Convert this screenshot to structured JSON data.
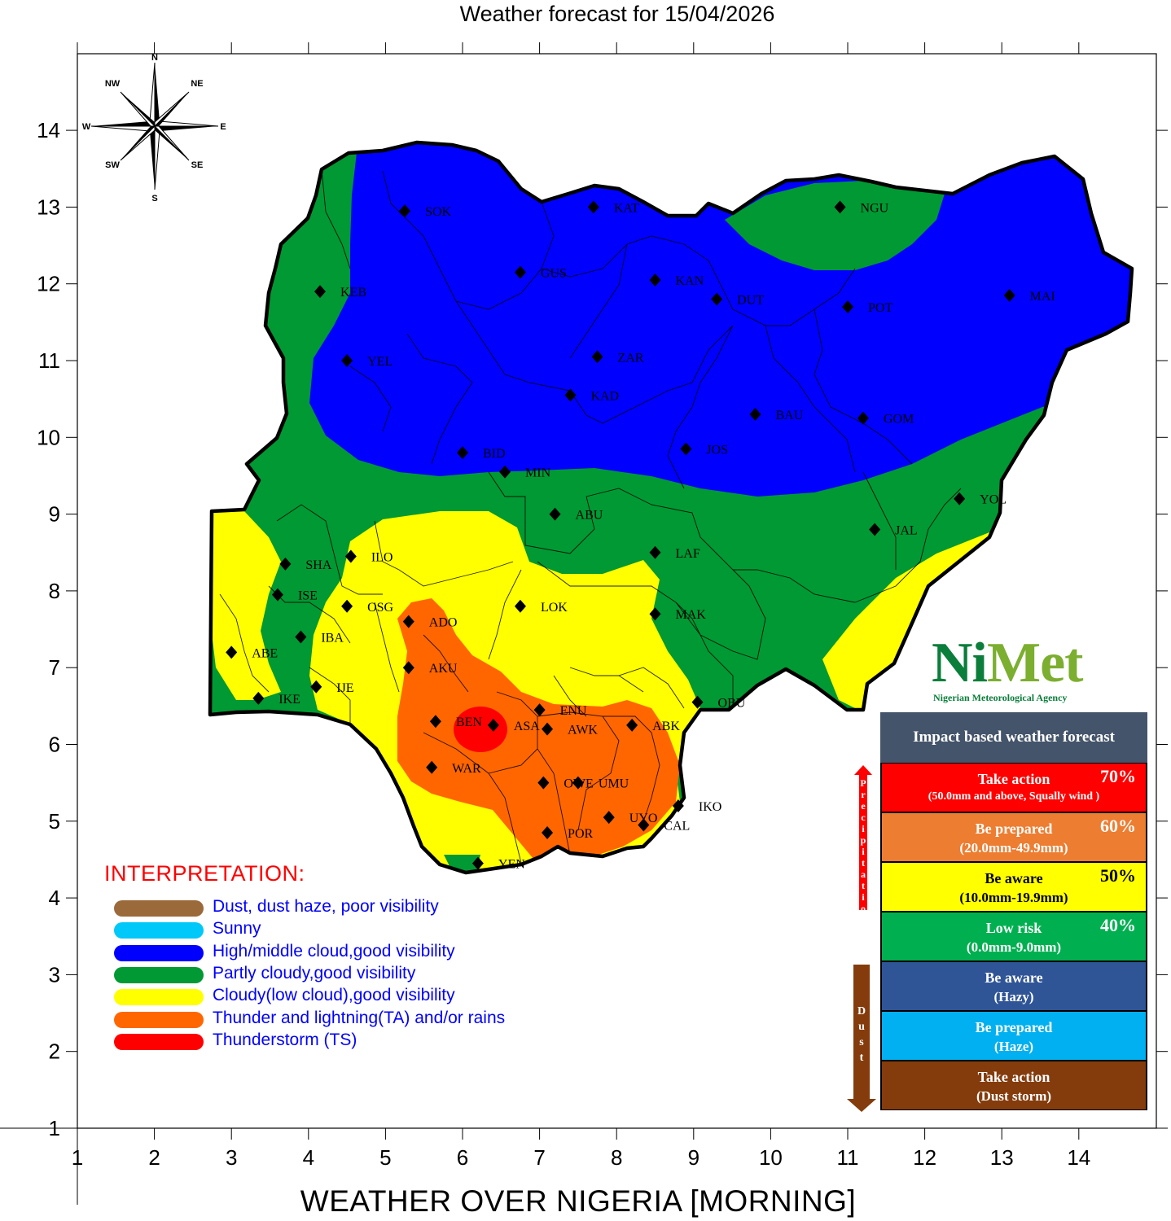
{
  "title": "Weather forecast for 15/04/2026",
  "bottom_title": "WEATHER OVER NIGERIA [MORNING]",
  "axes": {
    "x_ticks": [
      "1",
      "2",
      "3",
      "4",
      "5",
      "6",
      "7",
      "8",
      "9",
      "10",
      "11",
      "12",
      "13",
      "14"
    ],
    "y_ticks": [
      "1",
      "2",
      "3",
      "4",
      "5",
      "6",
      "7",
      "8",
      "9",
      "10",
      "11",
      "12",
      "13",
      "14"
    ],
    "xlim": [
      1,
      15
    ],
    "ylim": [
      1,
      15
    ]
  },
  "compass": {
    "n": "N",
    "s": "S",
    "e": "E",
    "w": "W",
    "ne": "NE",
    "nw": "NW",
    "se": "SE",
    "sw": "SW"
  },
  "cities": [
    {
      "code": "SOK",
      "lon": 5.25,
      "lat": 12.95
    },
    {
      "code": "KAT",
      "lon": 7.7,
      "lat": 13.0
    },
    {
      "code": "NGU",
      "lon": 10.9,
      "lat": 13.0
    },
    {
      "code": "GUS",
      "lon": 6.75,
      "lat": 12.15
    },
    {
      "code": "KEB",
      "lon": 4.15,
      "lat": 11.9
    },
    {
      "code": "KAN",
      "lon": 8.5,
      "lat": 12.05
    },
    {
      "code": "DUT",
      "lon": 9.3,
      "lat": 11.8
    },
    {
      "code": "POT",
      "lon": 11.0,
      "lat": 11.7
    },
    {
      "code": "MAI",
      "lon": 13.1,
      "lat": 11.85
    },
    {
      "code": "YEL",
      "lon": 4.5,
      "lat": 11.0
    },
    {
      "code": "ZAR",
      "lon": 7.75,
      "lat": 11.05
    },
    {
      "code": "KAD",
      "lon": 7.4,
      "lat": 10.55
    },
    {
      "code": "BAU",
      "lon": 9.8,
      "lat": 10.3
    },
    {
      "code": "GOM",
      "lon": 11.2,
      "lat": 10.25
    },
    {
      "code": "BID",
      "lon": 6.0,
      "lat": 9.8
    },
    {
      "code": "JOS",
      "lon": 8.9,
      "lat": 9.85
    },
    {
      "code": "MIN",
      "lon": 6.55,
      "lat": 9.55
    },
    {
      "code": "YOL",
      "lon": 12.45,
      "lat": 9.2
    },
    {
      "code": "ABU",
      "lon": 7.2,
      "lat": 9.0
    },
    {
      "code": "JAL",
      "lon": 11.35,
      "lat": 8.8
    },
    {
      "code": "ILO",
      "lon": 4.55,
      "lat": 8.45
    },
    {
      "code": "LAF",
      "lon": 8.5,
      "lat": 8.5
    },
    {
      "code": "SHA",
      "lon": 3.7,
      "lat": 8.35
    },
    {
      "code": "ISE",
      "lon": 3.6,
      "lat": 7.95
    },
    {
      "code": "OSG",
      "lon": 4.5,
      "lat": 7.8
    },
    {
      "code": "LOK",
      "lon": 6.75,
      "lat": 7.8
    },
    {
      "code": "MAK",
      "lon": 8.5,
      "lat": 7.7
    },
    {
      "code": "ADO",
      "lon": 5.3,
      "lat": 7.6
    },
    {
      "code": "IBA",
      "lon": 3.9,
      "lat": 7.4
    },
    {
      "code": "ABE",
      "lon": 3.0,
      "lat": 7.2
    },
    {
      "code": "AKU",
      "lon": 5.3,
      "lat": 7.0
    },
    {
      "code": "IJE",
      "lon": 4.1,
      "lat": 6.75
    },
    {
      "code": "IKE",
      "lon": 3.35,
      "lat": 6.6
    },
    {
      "code": "OBU",
      "lon": 9.05,
      "lat": 6.55
    },
    {
      "code": "ENU",
      "lon": 7.0,
      "lat": 6.45
    },
    {
      "code": "BEN",
      "lon": 5.65,
      "lat": 6.3
    },
    {
      "code": "ASA",
      "lon": 6.4,
      "lat": 6.25
    },
    {
      "code": "AWK",
      "lon": 7.1,
      "lat": 6.2
    },
    {
      "code": "ABK",
      "lon": 8.2,
      "lat": 6.25
    },
    {
      "code": "WAR",
      "lon": 5.6,
      "lat": 5.7
    },
    {
      "code": "OWE",
      "lon": 7.05,
      "lat": 5.5
    },
    {
      "code": "UMU",
      "lon": 7.5,
      "lat": 5.5
    },
    {
      "code": "IKO",
      "lon": 8.8,
      "lat": 5.2
    },
    {
      "code": "UYO",
      "lon": 7.9,
      "lat": 5.05
    },
    {
      "code": "CAL",
      "lon": 8.35,
      "lat": 4.95
    },
    {
      "code": "POR",
      "lon": 7.1,
      "lat": 4.85
    },
    {
      "code": "YEN",
      "lon": 6.2,
      "lat": 4.45
    }
  ],
  "legend": {
    "title": "INTERPRETATION:",
    "items": [
      {
        "label": "Dust, dust haze, poor visibility",
        "color": "#9b6a3a"
      },
      {
        "label": "Sunny",
        "color": "#00c8f8"
      },
      {
        "label": "High/middle cloud,good visibility",
        "color": "#0000ff"
      },
      {
        "label": "Partly cloudy,good visibility",
        "color": "#009933"
      },
      {
        "label": "Cloudy(low cloud),good visibility",
        "color": "#ffff00"
      },
      {
        "label": "Thunder and lightning(TA) and/or rains",
        "color": "#ff6600"
      },
      {
        "label": "Thunderstorm (TS)",
        "color": "#ff0000"
      }
    ]
  },
  "logo": {
    "word_ni": "Ni",
    "word_met": "Met",
    "subtitle": "Nigerian Meteorological Agency"
  },
  "impact": {
    "header": "Impact based weather forecast",
    "precipitation_label": "Precipitation",
    "dust_label": "Dust",
    "rows": [
      {
        "line1": "Take action",
        "line2": "(50.0mm and above, Squally wind )",
        "pct": "70%",
        "bg": "#ff0000",
        "fg": "#ffffff"
      },
      {
        "line1": "Be prepared",
        "line2": "(20.0mm-49.9mm)",
        "pct": "60%",
        "bg": "#ed7d31",
        "fg": "#ffffff"
      },
      {
        "line1": "Be aware",
        "line2": "(10.0mm-19.9mm)",
        "pct": "50%",
        "bg": "#ffff00",
        "fg": "#000000"
      },
      {
        "line1": "Low risk",
        "line2": "(0.0mm-9.0mm)",
        "pct": "40%",
        "bg": "#00b050",
        "fg": "#ffffff"
      },
      {
        "line1": "Be aware",
        "line2": "(Hazy)",
        "pct": "",
        "bg": "#2f5597",
        "fg": "#ffffff"
      },
      {
        "line1": "Be prepared",
        "line2": "(Haze)",
        "pct": "",
        "bg": "#00b0f0",
        "fg": "#ffffff"
      },
      {
        "line1": "Take action",
        "line2": "(Dust storm)",
        "pct": "",
        "bg": "#843c0c",
        "fg": "#ffffff"
      }
    ]
  }
}
